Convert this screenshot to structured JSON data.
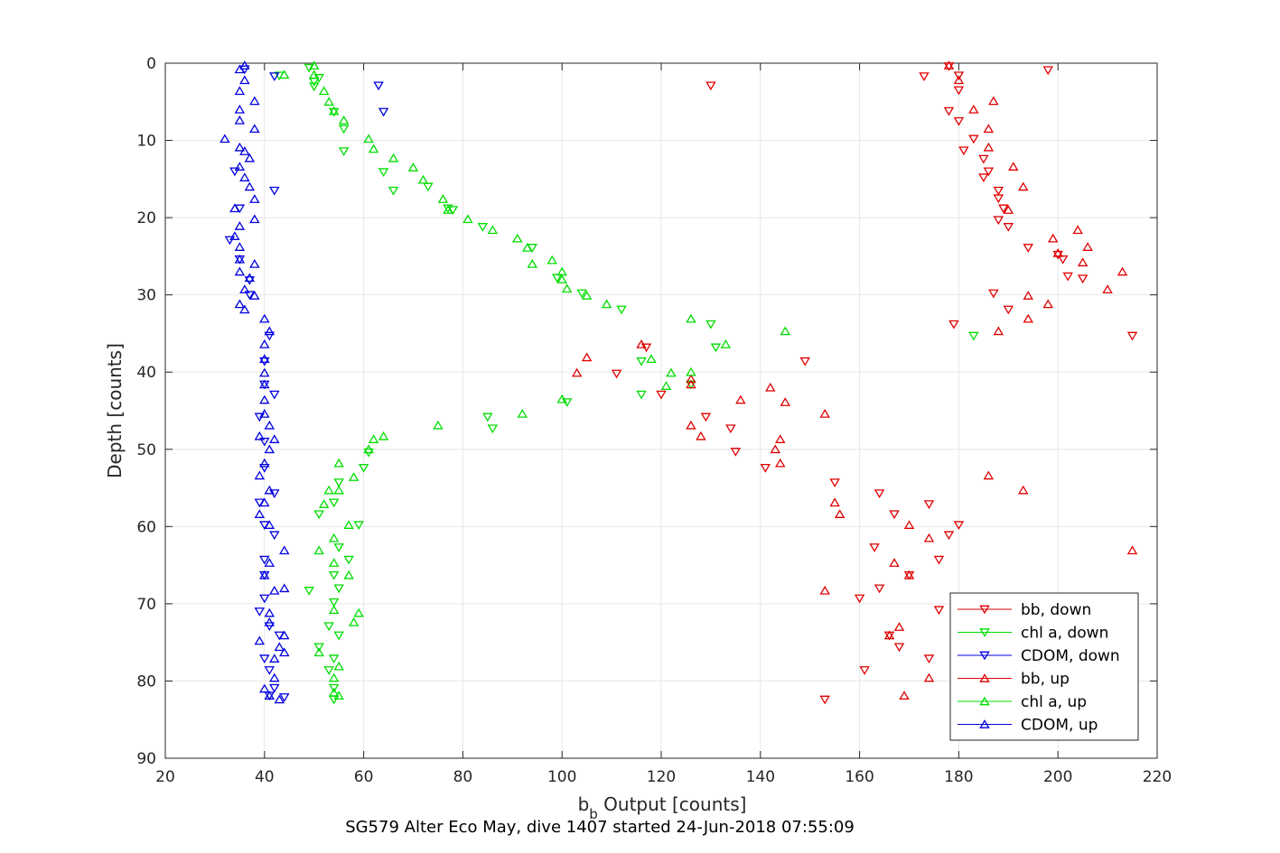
{
  "chart_data": {
    "type": "scatter",
    "xlabel_main": "b",
    "xlabel_sub": "b",
    "xlabel_rest": " Output [counts]",
    "ylabel": "Depth [counts]",
    "caption": "SG579 Alter Eco May, dive 1407 started 24-Jun-2018 07:55:09",
    "xlim": [
      20,
      220
    ],
    "ylim": [
      0,
      90
    ],
    "y_reversed": true,
    "grid": true,
    "legend_position": "bottom-right",
    "x_ticks": [
      20,
      40,
      60,
      80,
      100,
      120,
      140,
      160,
      180,
      200,
      220
    ],
    "y_ticks": [
      0,
      10,
      20,
      30,
      40,
      50,
      60,
      70,
      80,
      90
    ],
    "series": [
      {
        "name": "bb, down",
        "color": "#e00000",
        "marker": "triangle-down",
        "points": [
          [
            178,
            0.4
          ],
          [
            173,
            1.7
          ],
          [
            180,
            1.6
          ],
          [
            198,
            0.9
          ],
          [
            130,
            2.9
          ],
          [
            180,
            3.5
          ],
          [
            178,
            6.2
          ],
          [
            180,
            7.5
          ],
          [
            183,
            9.8
          ],
          [
            181,
            11.3
          ],
          [
            185,
            12.4
          ],
          [
            186,
            14.0
          ],
          [
            185,
            14.8
          ],
          [
            188,
            16.5
          ],
          [
            188,
            17.5
          ],
          [
            189,
            18.8
          ],
          [
            188,
            20.3
          ],
          [
            190,
            21.2
          ],
          [
            194,
            23.9
          ],
          [
            200,
            24.8
          ],
          [
            205,
            27.9
          ],
          [
            202,
            27.6
          ],
          [
            201,
            25.4
          ],
          [
            187,
            29.8
          ],
          [
            190,
            31.9
          ],
          [
            179,
            33.8
          ],
          [
            215,
            35.3
          ],
          [
            117,
            36.8
          ],
          [
            149,
            38.6
          ],
          [
            111,
            40.2
          ],
          [
            120,
            42.9
          ],
          [
            129,
            45.8
          ],
          [
            134,
            47.3
          ],
          [
            135,
            50.3
          ],
          [
            141,
            52.4
          ],
          [
            155,
            54.3
          ],
          [
            164,
            55.7
          ],
          [
            167,
            58.4
          ],
          [
            180,
            59.8
          ],
          [
            174,
            57.1
          ],
          [
            178,
            61.1
          ],
          [
            163,
            62.7
          ],
          [
            176,
            64.3
          ],
          [
            170,
            66.3
          ],
          [
            164,
            68.0
          ],
          [
            160,
            69.3
          ],
          [
            176,
            70.8
          ],
          [
            166,
            74.1
          ],
          [
            168,
            75.6
          ],
          [
            174,
            77.1
          ],
          [
            161,
            78.6
          ],
          [
            153,
            82.4
          ]
        ]
      },
      {
        "name": "chl a, down",
        "color": "#00dd00",
        "marker": "triangle-down",
        "points": [
          [
            49,
            0.6
          ],
          [
            51,
            1.9
          ],
          [
            43,
            1.6
          ],
          [
            50,
            2.4
          ],
          [
            50,
            3.0
          ],
          [
            54,
            6.3
          ],
          [
            56,
            8.5
          ],
          [
            56,
            11.4
          ],
          [
            64,
            14.1
          ],
          [
            66,
            16.5
          ],
          [
            73,
            16.0
          ],
          [
            77,
            18.8
          ],
          [
            78,
            19.0
          ],
          [
            84,
            21.2
          ],
          [
            94,
            23.9
          ],
          [
            99,
            27.8
          ],
          [
            104,
            29.8
          ],
          [
            112,
            31.9
          ],
          [
            130,
            33.8
          ],
          [
            131,
            36.8
          ],
          [
            116,
            38.6
          ],
          [
            126,
            41.6
          ],
          [
            116,
            42.9
          ],
          [
            101,
            43.9
          ],
          [
            85,
            45.8
          ],
          [
            86,
            47.3
          ],
          [
            61,
            50.4
          ],
          [
            60,
            52.4
          ],
          [
            55,
            54.3
          ],
          [
            54,
            56.9
          ],
          [
            51,
            58.4
          ],
          [
            59,
            59.8
          ],
          [
            55,
            62.7
          ],
          [
            57,
            64.3
          ],
          [
            54,
            66.3
          ],
          [
            55,
            68.0
          ],
          [
            49,
            68.3
          ],
          [
            54,
            69.8
          ],
          [
            53,
            72.9
          ],
          [
            55,
            74.1
          ],
          [
            51,
            75.6
          ],
          [
            54,
            77.1
          ],
          [
            53,
            78.6
          ],
          [
            54,
            80.9
          ],
          [
            54,
            82.4
          ],
          [
            183,
            35.3
          ]
        ]
      },
      {
        "name": "CDOM, down",
        "color": "#0000e0",
        "marker": "triangle-down",
        "points": [
          [
            42,
            1.7
          ],
          [
            63,
            2.9
          ],
          [
            64,
            6.3
          ],
          [
            42,
            16.5
          ],
          [
            36,
            0.8
          ],
          [
            34,
            14.0
          ],
          [
            35,
            18.8
          ],
          [
            33,
            22.9
          ],
          [
            35,
            25.4
          ],
          [
            37,
            28.1
          ],
          [
            37,
            30.0
          ],
          [
            41,
            35.3
          ],
          [
            40,
            38.6
          ],
          [
            40,
            41.6
          ],
          [
            42,
            42.9
          ],
          [
            39,
            45.8
          ],
          [
            40,
            49.0
          ],
          [
            40,
            52.4
          ],
          [
            42,
            55.7
          ],
          [
            39,
            56.9
          ],
          [
            40,
            59.8
          ],
          [
            42,
            61.1
          ],
          [
            40,
            64.3
          ],
          [
            40,
            66.3
          ],
          [
            40,
            69.3
          ],
          [
            39,
            71.0
          ],
          [
            41,
            72.9
          ],
          [
            43,
            74.1
          ],
          [
            40,
            77.1
          ],
          [
            41,
            78.6
          ],
          [
            42,
            80.9
          ],
          [
            41,
            81.9
          ],
          [
            44,
            82.1
          ]
        ]
      },
      {
        "name": "bb, up",
        "color": "#e00000",
        "marker": "triangle-up",
        "points": [
          [
            178,
            0.3
          ],
          [
            180,
            2.2
          ],
          [
            187,
            4.9
          ],
          [
            183,
            6.0
          ],
          [
            186,
            8.5
          ],
          [
            186,
            10.9
          ],
          [
            191,
            13.4
          ],
          [
            193,
            16.0
          ],
          [
            190,
            19.0
          ],
          [
            204,
            21.6
          ],
          [
            199,
            22.7
          ],
          [
            206,
            23.8
          ],
          [
            200,
            24.6
          ],
          [
            205,
            25.8
          ],
          [
            213,
            27.0
          ],
          [
            210,
            29.3
          ],
          [
            194,
            30.1
          ],
          [
            198,
            31.2
          ],
          [
            194,
            33.1
          ],
          [
            188,
            34.7
          ],
          [
            116,
            36.4
          ],
          [
            105,
            38.1
          ],
          [
            103,
            40.1
          ],
          [
            126,
            40.9
          ],
          [
            126,
            41.6
          ],
          [
            142,
            42.0
          ],
          [
            136,
            43.6
          ],
          [
            145,
            43.9
          ],
          [
            153,
            45.4
          ],
          [
            126,
            46.9
          ],
          [
            128,
            48.3
          ],
          [
            144,
            48.7
          ],
          [
            143,
            50.0
          ],
          [
            144,
            51.8
          ],
          [
            186,
            53.4
          ],
          [
            193,
            55.3
          ],
          [
            155,
            56.9
          ],
          [
            156,
            58.4
          ],
          [
            170,
            59.8
          ],
          [
            174,
            61.5
          ],
          [
            215,
            63.1
          ],
          [
            167,
            64.7
          ],
          [
            170,
            66.3
          ],
          [
            153,
            68.3
          ],
          [
            168,
            73.0
          ],
          [
            166,
            74.1
          ],
          [
            174,
            79.6
          ],
          [
            169,
            81.9
          ]
        ]
      },
      {
        "name": "chl a, up",
        "color": "#00dd00",
        "marker": "triangle-up",
        "points": [
          [
            50,
            0.3
          ],
          [
            44,
            1.5
          ],
          [
            50,
            1.5
          ],
          [
            52,
            3.6
          ],
          [
            53,
            5.0
          ],
          [
            54,
            6.2
          ],
          [
            56,
            7.4
          ],
          [
            61,
            9.8
          ],
          [
            62,
            11.1
          ],
          [
            66,
            12.3
          ],
          [
            70,
            13.5
          ],
          [
            72,
            15.1
          ],
          [
            76,
            17.6
          ],
          [
            77,
            19.0
          ],
          [
            81,
            20.2
          ],
          [
            86,
            21.6
          ],
          [
            91,
            22.7
          ],
          [
            93,
            23.9
          ],
          [
            94,
            26.0
          ],
          [
            98,
            25.5
          ],
          [
            100,
            27.0
          ],
          [
            100,
            28.0
          ],
          [
            101,
            29.2
          ],
          [
            105,
            30.1
          ],
          [
            109,
            31.2
          ],
          [
            126,
            33.1
          ],
          [
            133,
            36.4
          ],
          [
            145,
            34.7
          ],
          [
            118,
            38.3
          ],
          [
            122,
            40.1
          ],
          [
            126,
            40.0
          ],
          [
            121,
            41.8
          ],
          [
            100,
            43.5
          ],
          [
            92,
            45.4
          ],
          [
            75,
            46.9
          ],
          [
            64,
            48.3
          ],
          [
            62,
            48.7
          ],
          [
            61,
            50.0
          ],
          [
            58,
            53.6
          ],
          [
            55,
            51.8
          ],
          [
            55,
            55.3
          ],
          [
            53,
            55.3
          ],
          [
            52,
            57.1
          ],
          [
            57,
            59.8
          ],
          [
            54,
            61.5
          ],
          [
            51,
            63.1
          ],
          [
            54,
            64.7
          ],
          [
            57,
            66.3
          ],
          [
            59,
            71.2
          ],
          [
            54,
            70.8
          ],
          [
            58,
            72.4
          ],
          [
            51,
            76.3
          ],
          [
            55,
            78.1
          ],
          [
            54,
            79.6
          ],
          [
            55,
            81.9
          ],
          [
            54,
            81.5
          ]
        ]
      },
      {
        "name": "CDOM, up",
        "color": "#0000e0",
        "marker": "triangle-up",
        "points": [
          [
            36,
            0.3
          ],
          [
            35,
            0.8
          ],
          [
            36,
            2.2
          ],
          [
            35,
            3.6
          ],
          [
            38,
            4.9
          ],
          [
            35,
            6.0
          ],
          [
            35,
            7.4
          ],
          [
            38,
            8.5
          ],
          [
            32,
            9.8
          ],
          [
            35,
            10.9
          ],
          [
            36,
            11.4
          ],
          [
            37,
            12.3
          ],
          [
            35,
            13.4
          ],
          [
            36,
            14.8
          ],
          [
            37,
            16.0
          ],
          [
            38,
            17.6
          ],
          [
            34,
            18.8
          ],
          [
            38,
            20.2
          ],
          [
            35,
            21.1
          ],
          [
            34,
            22.4
          ],
          [
            35,
            23.8
          ],
          [
            35,
            25.4
          ],
          [
            38,
            26.0
          ],
          [
            35,
            27.0
          ],
          [
            37,
            27.8
          ],
          [
            36,
            29.3
          ],
          [
            38,
            30.1
          ],
          [
            35,
            31.2
          ],
          [
            36,
            31.9
          ],
          [
            40,
            33.1
          ],
          [
            41,
            34.7
          ],
          [
            40,
            36.4
          ],
          [
            40,
            38.3
          ],
          [
            40,
            40.1
          ],
          [
            40,
            41.6
          ],
          [
            40,
            43.6
          ],
          [
            40,
            45.4
          ],
          [
            41,
            46.9
          ],
          [
            39,
            48.3
          ],
          [
            42,
            48.7
          ],
          [
            41,
            50.0
          ],
          [
            40,
            51.8
          ],
          [
            39,
            53.4
          ],
          [
            41,
            55.3
          ],
          [
            40,
            56.9
          ],
          [
            39,
            58.4
          ],
          [
            41,
            59.8
          ],
          [
            44,
            63.1
          ],
          [
            41,
            64.7
          ],
          [
            40,
            66.3
          ],
          [
            44,
            68.0
          ],
          [
            42,
            68.3
          ],
          [
            41,
            71.2
          ],
          [
            41,
            72.4
          ],
          [
            39,
            74.8
          ],
          [
            44,
            74.1
          ],
          [
            43,
            75.6
          ],
          [
            44,
            76.3
          ],
          [
            42,
            77.1
          ],
          [
            42,
            79.6
          ],
          [
            40,
            81.0
          ],
          [
            41,
            81.9
          ],
          [
            43,
            82.4
          ]
        ]
      }
    ]
  }
}
